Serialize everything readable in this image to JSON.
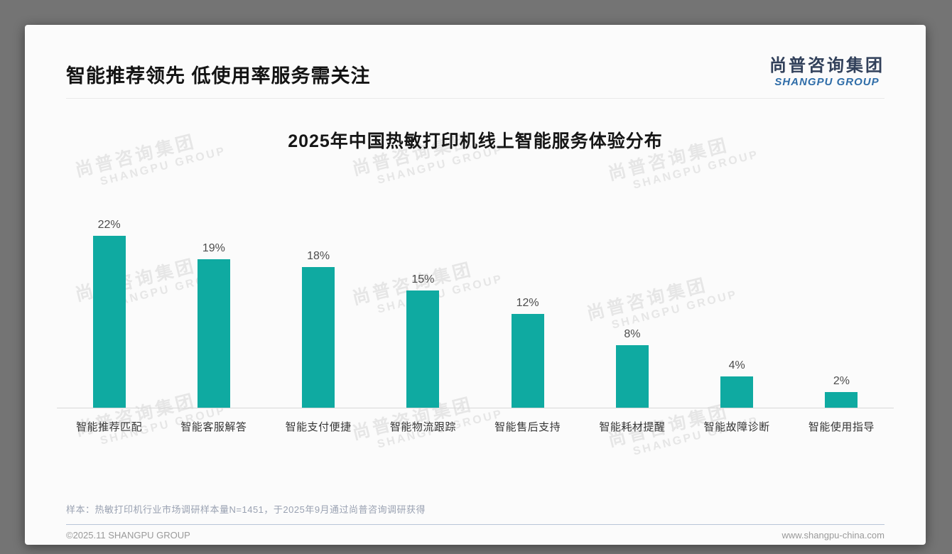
{
  "page": {
    "title": "智能推荐领先 低使用率服务需关注",
    "logo": {
      "cn": "尚普咨询集团",
      "en": "SHANGPU GROUP"
    },
    "watermark": {
      "line1": "尚普咨询集团",
      "line2": "SHANGPU GROUP"
    },
    "note": "样本：热敏打印机行业市场调研样本量N=1451，于2025年9月通过尚普咨询调研获得",
    "footer": {
      "left": "©2025.11 SHANGPU GROUP",
      "right": "www.shangpu-china.com"
    }
  },
  "chart_data": {
    "type": "bar",
    "title": "2025年中国热敏打印机线上智能服务体验分布",
    "categories": [
      "智能推荐匹配",
      "智能客服解答",
      "智能支付便捷",
      "智能物流跟踪",
      "智能售后支持",
      "智能耗材提醒",
      "智能故障诊断",
      "智能使用指导"
    ],
    "values": [
      22,
      19,
      18,
      15,
      12,
      8,
      4,
      2
    ],
    "value_labels": [
      "22%",
      "19%",
      "18%",
      "15%",
      "12%",
      "8%",
      "4%",
      "2%"
    ],
    "unit": "%",
    "bar_color": "#0faaa1",
    "xlabel": "",
    "ylabel": "",
    "ylim": [
      0,
      24
    ],
    "grid": false,
    "legend": null
  }
}
